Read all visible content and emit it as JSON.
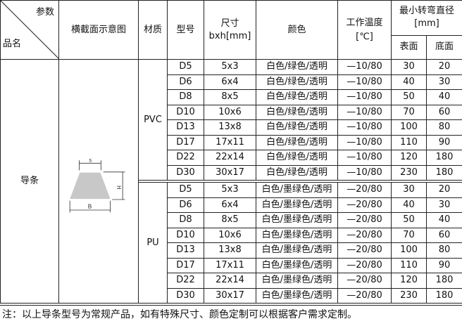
{
  "header": {
    "param": "参数",
    "product": "品名",
    "cross_section": "横截面示意图",
    "material": "材质",
    "model": "型号",
    "size_l1": "尺寸",
    "size_l2": "bxh[mm]",
    "color": "颜色",
    "temp_l1": "工作温度",
    "temp_l2": "[℃]",
    "bend": "最小转弯直径",
    "bend_unit": "[mm]",
    "surface": "表面",
    "bottom": "底面"
  },
  "product_name": "导条",
  "diagram": {
    "s": "s",
    "h": "H",
    "b": "B"
  },
  "groups": [
    {
      "material": "PVC",
      "rows": [
        [
          "D5",
          "5x3",
          "白色/绿色/透明",
          "—10/80",
          "30",
          "20"
        ],
        [
          "D6",
          "6x4",
          "白色/绿色/透明",
          "—10/80",
          "40",
          "30"
        ],
        [
          "D8",
          "8x5",
          "白色/绿色/透明",
          "—10/80",
          "50",
          "40"
        ],
        [
          "D10",
          "10x6",
          "白色/绿色/透明",
          "—10/80",
          "70",
          "60"
        ],
        [
          "D13",
          "13x8",
          "白色/绿色/透明",
          "—10/80",
          "100",
          "80"
        ],
        [
          "D17",
          "17x11",
          "白色/绿色/透明",
          "—10/80",
          "110",
          "90"
        ],
        [
          "D22",
          "22x14",
          "白色/绿色/透明",
          "—10/80",
          "120",
          "180"
        ],
        [
          "D30",
          "30x17",
          "白色/绿色/透明",
          "—10/80",
          "230",
          "180"
        ]
      ]
    },
    {
      "material": "PU",
      "rows": [
        [
          "D5",
          "5x3",
          "白色/墨绿色/透明",
          "—20/80",
          "30",
          "20"
        ],
        [
          "D6",
          "6x4",
          "白色/墨绿色/透明",
          "—20/80",
          "40",
          "30"
        ],
        [
          "D8",
          "8x5",
          "白色/墨绿色/透明",
          "—20/80",
          "50",
          "40"
        ],
        [
          "D10",
          "10x6",
          "白色/墨绿色/透明",
          "—20/80",
          "70",
          "60"
        ],
        [
          "D13",
          "13x8",
          "白色/墨绿色/透明",
          "—20/80",
          "100",
          "80"
        ],
        [
          "D17",
          "17x11",
          "白色/墨绿色/透明",
          "—20/80",
          "110",
          "90"
        ],
        [
          "D22",
          "22x14",
          "白色/墨绿色/透明",
          "—20/80",
          "120",
          "180"
        ],
        [
          "D30",
          "30x17",
          "白色/墨绿色/透明",
          "—20/80",
          "230",
          "180"
        ]
      ]
    }
  ],
  "note": "注：以上导条型号为常规产品，如有特殊尺寸、颜色定制可以根据客户需求定制。"
}
